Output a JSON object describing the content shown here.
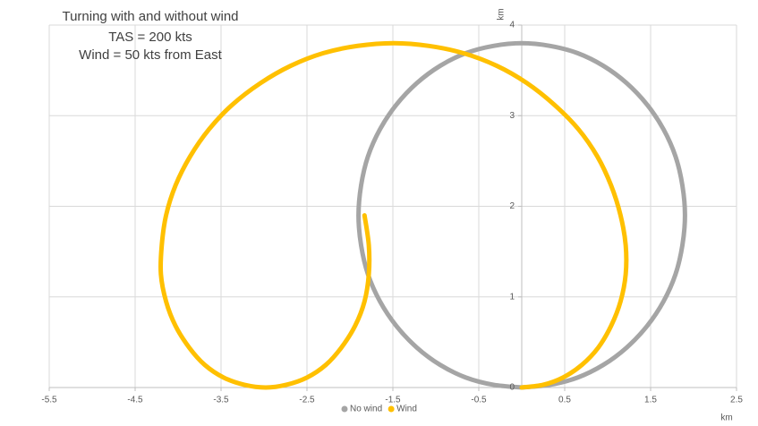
{
  "chart_data": {
    "type": "scatter",
    "title": "Turning with and without wind",
    "annotations": [
      "TAS = 200 kts",
      "Wind = 50 kts from East"
    ],
    "x_label": "km",
    "y_label": "km",
    "xlim": [
      -5.5,
      2.5
    ],
    "xticks": [
      -5.5,
      -4.5,
      -3.5,
      -2.5,
      -1.5,
      -0.5,
      0.5,
      1.5,
      2.5
    ],
    "ylim": [
      0,
      4
    ],
    "yticks": [
      0,
      1,
      2,
      3,
      4
    ],
    "grid": true,
    "legend": "bottom",
    "series": [
      {
        "name": "No wind",
        "color": "#a5a5a5",
        "x": [
          0,
          0.33,
          0.65,
          0.95,
          1.22,
          1.46,
          1.65,
          1.79,
          1.87,
          1.9,
          1.87,
          1.79,
          1.65,
          1.46,
          1.22,
          0.95,
          0.65,
          0.33,
          0,
          -0.33,
          -0.65,
          -0.95,
          -1.22,
          -1.46,
          -1.65,
          -1.79,
          -1.87,
          -1.9,
          -1.87,
          -1.79,
          -1.65,
          -1.46,
          -1.22,
          -0.95,
          -0.65,
          -0.33,
          0
        ],
        "values": [
          0,
          0.03,
          0.11,
          0.25,
          0.44,
          0.68,
          0.95,
          1.25,
          1.57,
          1.9,
          2.23,
          2.55,
          2.85,
          3.12,
          3.36,
          3.55,
          3.69,
          3.77,
          3.8,
          3.77,
          3.69,
          3.55,
          3.36,
          3.12,
          2.85,
          2.55,
          2.23,
          1.9,
          1.57,
          1.25,
          0.95,
          0.68,
          0.44,
          0.25,
          0.11,
          0.03,
          0
        ]
      },
      {
        "name": "Wind",
        "color": "#ffc000",
        "x": [
          0,
          0.25,
          0.48,
          0.7,
          0.89,
          1.04,
          1.15,
          1.21,
          1.21,
          1.15,
          1.04,
          0.88,
          0.66,
          0.38,
          0.06,
          -0.29,
          -0.68,
          -1.08,
          -1.49,
          -1.91,
          -2.31,
          -2.69,
          -3.04,
          -3.37,
          -3.64,
          -3.86,
          -4.03,
          -4.14,
          -4.19,
          -4.2,
          -4.14,
          -4.03,
          -3.87,
          -3.69,
          -3.47,
          -3.23,
          -2.98,
          -2.74,
          -2.5,
          -2.28,
          -2.1,
          -1.94,
          -1.83,
          -1.78,
          -1.78,
          -1.83
        ],
        "values": [
          0,
          0.03,
          0.11,
          0.25,
          0.44,
          0.68,
          0.95,
          1.25,
          1.57,
          1.9,
          2.23,
          2.55,
          2.85,
          3.12,
          3.36,
          3.55,
          3.69,
          3.77,
          3.8,
          3.77,
          3.69,
          3.55,
          3.36,
          3.12,
          2.85,
          2.55,
          2.23,
          1.9,
          1.57,
          1.25,
          0.95,
          0.68,
          0.44,
          0.25,
          0.11,
          0.03,
          0,
          0.03,
          0.11,
          0.25,
          0.44,
          0.68,
          0.95,
          1.25,
          1.57,
          1.9
        ]
      }
    ]
  }
}
